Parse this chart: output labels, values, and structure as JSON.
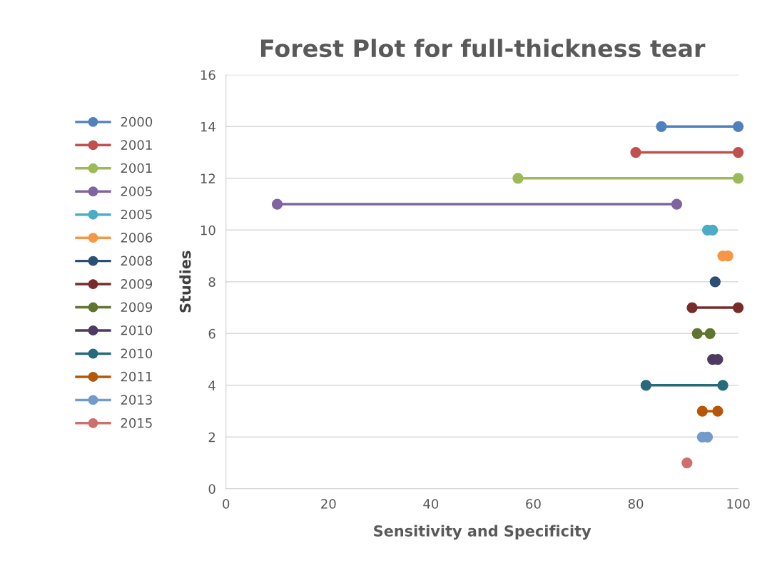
{
  "chart_data": {
    "type": "line",
    "title": "Forest Plot for full-thickness tear",
    "xlabel": "Sensitivity and Specificity",
    "ylabel": "Studies",
    "xlim": [
      0,
      100
    ],
    "xticks": [
      0,
      20,
      40,
      60,
      80,
      100
    ],
    "ylim": [
      0,
      16
    ],
    "yticks": [
      0,
      2,
      4,
      6,
      8,
      10,
      12,
      14,
      16
    ],
    "grid": "y",
    "legend": "left",
    "marker": "circle",
    "line_style": "solid",
    "series": [
      {
        "name": "2000",
        "color": "#4f81bd",
        "x": [
          85,
          100
        ],
        "values": [
          14,
          14
        ]
      },
      {
        "name": "2001",
        "color": "#c0504d",
        "x": [
          80,
          100
        ],
        "values": [
          13,
          13
        ]
      },
      {
        "name": "2001",
        "color": "#9bbb59",
        "x": [
          57,
          100
        ],
        "values": [
          12,
          12
        ]
      },
      {
        "name": "2005",
        "color": "#8064a2",
        "x": [
          10,
          88
        ],
        "values": [
          11,
          11
        ]
      },
      {
        "name": "2005",
        "type": "scatter",
        "color": "#4bacc6",
        "x": [
          94,
          95
        ],
        "values": [
          10,
          10
        ]
      },
      {
        "name": "2006",
        "type": "scatter",
        "color": "#f79646",
        "x": [
          97,
          98
        ],
        "values": [
          9,
          9
        ]
      },
      {
        "name": "2008",
        "type": "scatter",
        "color": "#2c4d75",
        "x": [
          95.5
        ],
        "values": [
          8
        ]
      },
      {
        "name": "2009",
        "color": "#772c2a",
        "x": [
          91,
          100
        ],
        "values": [
          7,
          7
        ]
      },
      {
        "name": "2009",
        "color": "#5f7530",
        "x": [
          92,
          94.5
        ],
        "values": [
          6,
          6
        ]
      },
      {
        "name": "2010",
        "type": "scatter",
        "color": "#4d3b62",
        "x": [
          95,
          96
        ],
        "values": [
          5,
          5
        ]
      },
      {
        "name": "2010",
        "color": "#276a7c",
        "x": [
          82,
          97
        ],
        "values": [
          4,
          4
        ]
      },
      {
        "name": "2011",
        "color": "#b65708",
        "x": [
          93,
          96
        ],
        "values": [
          3,
          3
        ]
      },
      {
        "name": "2013",
        "type": "scatter",
        "color": "#729aca",
        "x": [
          93,
          94
        ],
        "values": [
          2,
          2
        ]
      },
      {
        "name": "2015",
        "type": "scatter",
        "color": "#d06e6b",
        "x": [
          90
        ],
        "values": [
          1
        ]
      }
    ]
  }
}
